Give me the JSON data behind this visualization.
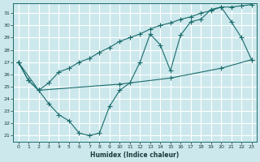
{
  "xlabel": "Humidex (Indice chaleur)",
  "bg_color": "#cce8ec",
  "grid_color": "#ffffff",
  "line_color": "#1a6b6b",
  "xlim": [
    -0.5,
    23.5
  ],
  "ylim": [
    20.5,
    31.8
  ],
  "xticks": [
    0,
    1,
    2,
    3,
    4,
    5,
    6,
    7,
    8,
    9,
    10,
    11,
    12,
    13,
    14,
    15,
    16,
    17,
    18,
    19,
    20,
    21,
    22,
    23
  ],
  "yticks": [
    21,
    22,
    23,
    24,
    25,
    26,
    27,
    28,
    29,
    30,
    31
  ],
  "curve_jagged": {
    "x": [
      0,
      1,
      2,
      3,
      4,
      5,
      6,
      7,
      8,
      9,
      10,
      11,
      12,
      13,
      14,
      15,
      16,
      17,
      18,
      19,
      20,
      21,
      22,
      23
    ],
    "y": [
      27.0,
      25.5,
      24.7,
      23.6,
      22.7,
      22.2,
      21.2,
      21.0,
      21.2,
      23.4,
      24.7,
      25.3,
      27.0,
      29.3,
      28.4,
      26.3,
      29.2,
      30.3,
      30.5,
      31.3,
      31.5,
      30.3,
      29.0,
      27.2
    ]
  },
  "curve_rising": {
    "x": [
      0,
      1,
      2,
      3,
      4,
      5,
      6,
      7,
      8,
      9,
      10,
      11,
      12,
      13,
      14,
      15,
      16,
      17,
      18,
      19,
      20,
      21,
      22,
      23
    ],
    "y": [
      27.0,
      25.5,
      24.7,
      25.3,
      26.2,
      26.5,
      27.0,
      27.3,
      27.8,
      28.2,
      28.7,
      29.0,
      29.3,
      29.7,
      30.0,
      30.2,
      30.5,
      30.7,
      31.0,
      31.2,
      31.5,
      31.5,
      31.6,
      31.7
    ]
  },
  "curve_flat": {
    "x": [
      0,
      2,
      10,
      15,
      20,
      23
    ],
    "y": [
      27.0,
      24.7,
      25.2,
      25.7,
      26.5,
      27.2
    ]
  }
}
